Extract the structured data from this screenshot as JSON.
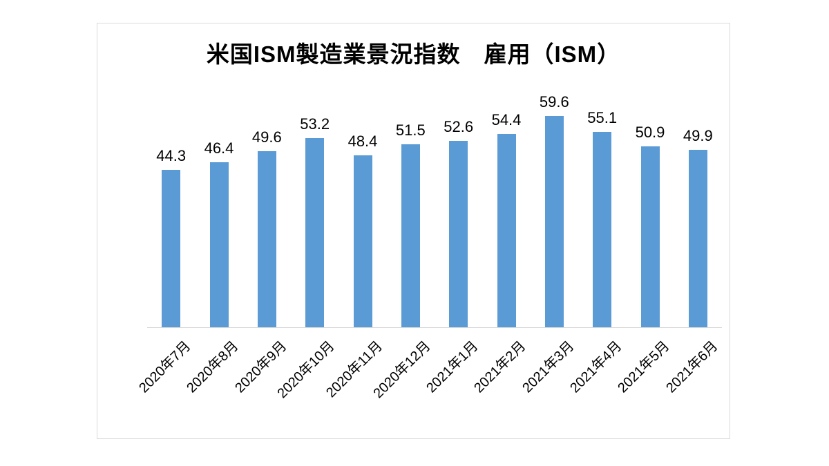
{
  "chart_data": {
    "type": "bar",
    "title": "米国ISM製造業景況指数　雇用（ISM）",
    "categories": [
      "2020年7月",
      "2020年8月",
      "2020年9月",
      "2020年10月",
      "2020年11月",
      "2020年12月",
      "2021年1月",
      "2021年2月",
      "2021年3月",
      "2021年4月",
      "2021年5月",
      "2021年6月"
    ],
    "values": [
      44.3,
      46.4,
      49.6,
      53.2,
      48.4,
      51.5,
      52.6,
      54.4,
      59.6,
      55.1,
      50.9,
      49.9
    ],
    "xlabel": "",
    "ylabel": "",
    "ylim": [
      0,
      70
    ],
    "grid": false,
    "legend": "none",
    "data_labels": true,
    "x_label_rotation": -45,
    "colors": {
      "bar": "#5B9BD5",
      "axis_line": "#D9D9D9",
      "frame_border": "#D9D9D9",
      "text": "#000000",
      "background": "#FFFFFF"
    }
  }
}
